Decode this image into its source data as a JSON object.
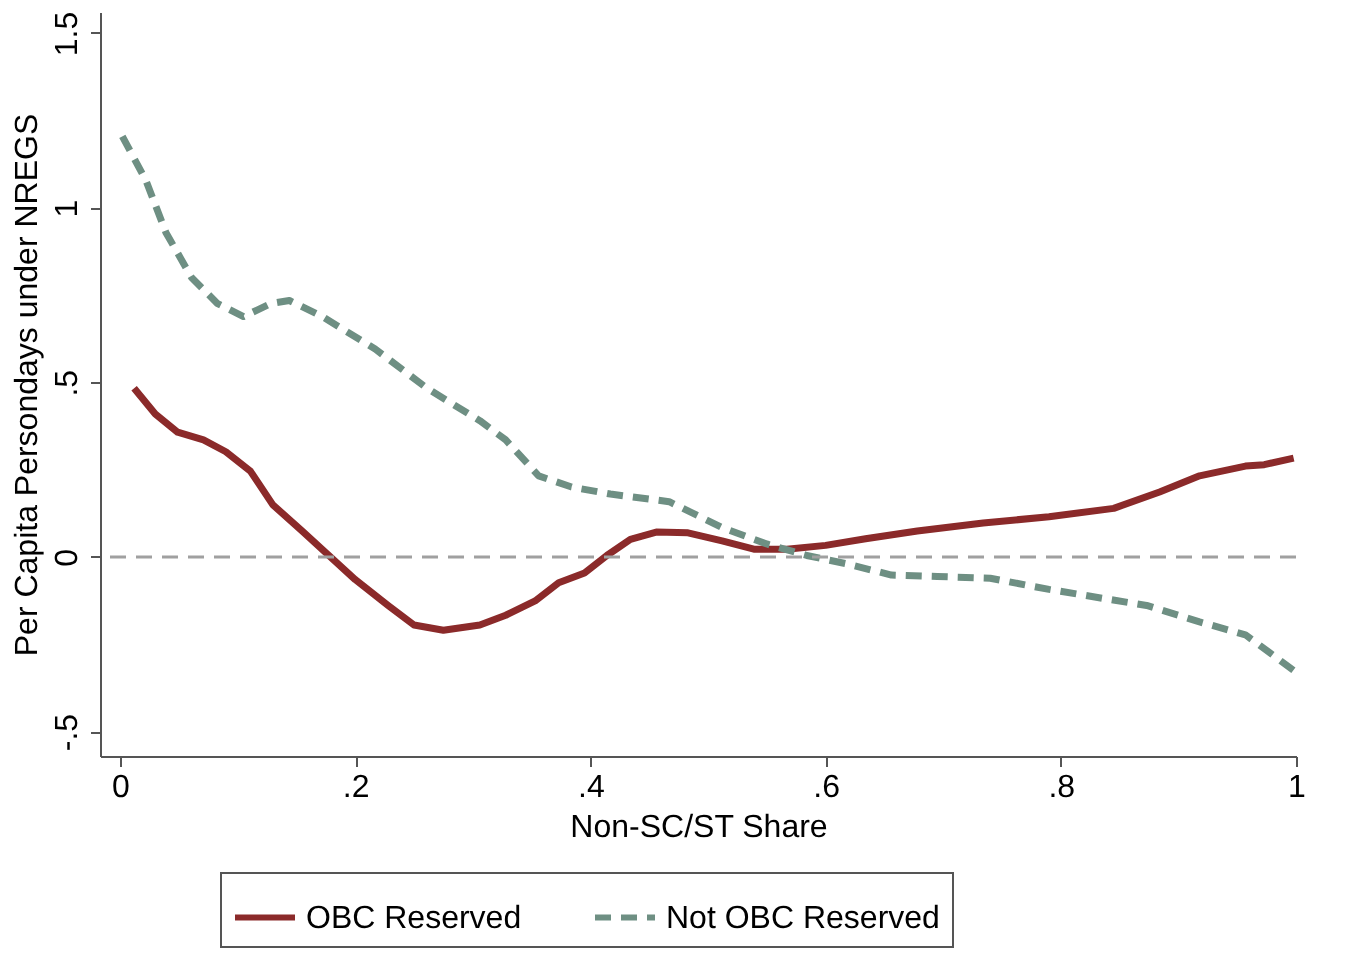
{
  "chart_data": {
    "type": "line",
    "xlabel": "Non-SC/ST Share",
    "ylabel": "Per Capita Persondays under NREGS",
    "xlim": [
      -0.017,
      1.0
    ],
    "ylim": [
      -0.57,
      1.56
    ],
    "xticks": [
      {
        "value": 0,
        "label": "0"
      },
      {
        "value": 0.2,
        "label": ".2"
      },
      {
        "value": 0.4,
        "label": ".4"
      },
      {
        "value": 0.6,
        "label": ".6"
      },
      {
        "value": 0.8,
        "label": ".8"
      },
      {
        "value": 1,
        "label": "1"
      }
    ],
    "yticks": [
      {
        "value": -0.5,
        "label": "-.5"
      },
      {
        "value": 0,
        "label": "0"
      },
      {
        "value": 0.5,
        "label": ".5"
      },
      {
        "value": 1,
        "label": "1"
      },
      {
        "value": 1.5,
        "label": "1.5"
      }
    ],
    "grid": false,
    "legend": "bottom",
    "marker": "none",
    "ref_lines": [
      {
        "axis": "y",
        "value": 0,
        "color": "#a0a0a0",
        "line_style": "dashed"
      }
    ],
    "series": [
      {
        "name": "OBC Reserved",
        "color": "#8b2a2a",
        "line_style": "solid",
        "x": [
          0.012,
          0.03,
          0.049,
          0.071,
          0.09,
          0.111,
          0.13,
          0.155,
          0.2,
          0.228,
          0.25,
          0.275,
          0.306,
          0.328,
          0.353,
          0.373,
          0.395,
          0.414,
          0.434,
          0.456,
          0.483,
          0.512,
          0.539,
          0.567,
          0.6,
          0.634,
          0.678,
          0.734,
          0.79,
          0.845,
          0.884,
          0.918,
          0.957,
          0.973,
          0.998
        ],
        "values": [
          0.483,
          0.409,
          0.357,
          0.335,
          0.301,
          0.245,
          0.149,
          0.074,
          -0.065,
          -0.139,
          -0.195,
          -0.21,
          -0.195,
          -0.167,
          -0.126,
          -0.074,
          -0.046,
          0.004,
          0.05,
          0.071,
          0.069,
          0.046,
          0.022,
          0.022,
          0.033,
          0.052,
          0.074,
          0.097,
          0.115,
          0.139,
          0.186,
          0.232,
          0.26,
          0.264,
          0.283
        ]
      },
      {
        "name": "Not OBC Reserved",
        "color": "#6e8f83",
        "line_style": "dashed",
        "x": [
          0.002,
          0.022,
          0.039,
          0.061,
          0.083,
          0.105,
          0.128,
          0.144,
          0.172,
          0.217,
          0.261,
          0.306,
          0.328,
          0.356,
          0.384,
          0.417,
          0.467,
          0.512,
          0.55,
          0.584,
          0.617,
          0.656,
          0.695,
          0.74,
          0.79,
          0.84,
          0.873,
          0.918,
          0.957,
          0.998
        ],
        "values": [
          1.204,
          1.078,
          0.929,
          0.799,
          0.725,
          0.688,
          0.725,
          0.734,
          0.688,
          0.595,
          0.483,
          0.39,
          0.335,
          0.232,
          0.2,
          0.18,
          0.158,
          0.084,
          0.037,
          0.004,
          -0.019,
          -0.052,
          -0.056,
          -0.061,
          -0.093,
          -0.121,
          -0.139,
          -0.186,
          -0.223,
          -0.325
        ]
      }
    ]
  }
}
